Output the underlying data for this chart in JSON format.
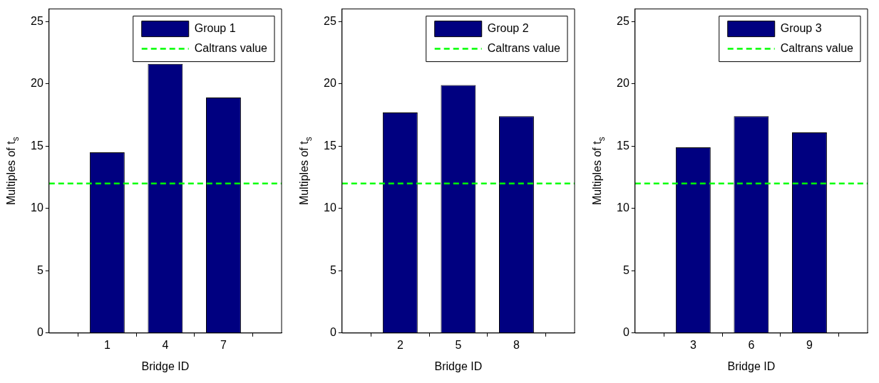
{
  "chart_data": [
    {
      "type": "bar",
      "xlabel": "Bridge ID",
      "ylabel": "Multiples of t$_{s}$",
      "categories": [
        "1",
        "4",
        "7"
      ],
      "series": [
        {
          "name": "Group 1",
          "color": "#000080",
          "values": [
            14.5,
            21.6,
            18.9
          ]
        }
      ],
      "ylim": [
        0,
        26
      ],
      "yticks": [
        0,
        5,
        10,
        15,
        20,
        25
      ],
      "grid": false,
      "legend": "top right",
      "ref_lines": [
        {
          "axis": "y",
          "value": 12,
          "label": "Caltrans value",
          "color": "#00ff00",
          "line_style": "dashed"
        }
      ]
    },
    {
      "type": "bar",
      "xlabel": "Bridge ID",
      "ylabel": "Multiples of t$_{s}$",
      "categories": [
        "2",
        "5",
        "8"
      ],
      "series": [
        {
          "name": "Group 2",
          "color": "#000080",
          "values": [
            17.7,
            19.9,
            17.4
          ]
        }
      ],
      "ylim": [
        0,
        26
      ],
      "yticks": [
        0,
        5,
        10,
        15,
        20,
        25
      ],
      "grid": false,
      "legend": "top right",
      "ref_lines": [
        {
          "axis": "y",
          "value": 12,
          "label": "Caltrans value",
          "color": "#00ff00",
          "line_style": "dashed"
        }
      ]
    },
    {
      "type": "bar",
      "xlabel": "Bridge ID",
      "ylabel": "Multiples of t$_{s}$",
      "categories": [
        "3",
        "6",
        "9"
      ],
      "series": [
        {
          "name": "Group 3",
          "color": "#000080",
          "values": [
            14.9,
            17.4,
            16.1
          ]
        }
      ],
      "ylim": [
        0,
        26
      ],
      "yticks": [
        0,
        5,
        10,
        15,
        20,
        25
      ],
      "grid": false,
      "legend": "top right",
      "ref_lines": [
        {
          "axis": "y",
          "value": 12,
          "label": "Caltrans value",
          "color": "#00ff00",
          "line_style": "dashed"
        }
      ]
    }
  ]
}
